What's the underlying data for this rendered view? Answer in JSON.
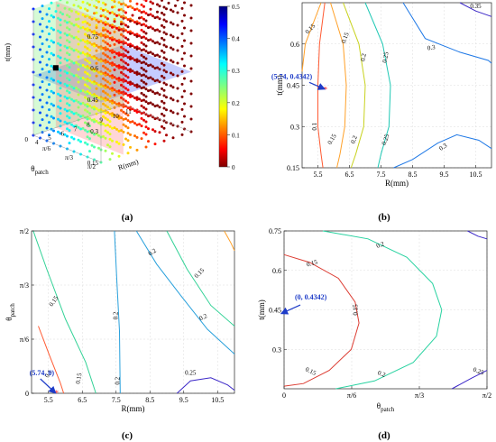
{
  "panel_labels": [
    "(a)",
    "(b)",
    "(c)",
    "(d)"
  ],
  "chart_data": [
    {
      "panel": "(a)",
      "type": "scatter",
      "subtype": "3d-voxel-scatter",
      "axes": {
        "t": {
          "label": "t(mm)",
          "ticks": [
            "0.15",
            "0.3",
            "0.45",
            "0.6",
            "0.75"
          ],
          "range": [
            0.15,
            0.75
          ]
        },
        "R": {
          "label": "R(mm)",
          "ticks": [
            "4",
            "5",
            "6",
            "7",
            "8",
            "9",
            "10",
            "11"
          ],
          "range": [
            4,
            11
          ]
        },
        "theta": {
          "label": "θ",
          "label_sub": "patch",
          "ticks": [
            "0",
            "π/6",
            "π/3",
            "π/2"
          ]
        }
      },
      "colorbar": {
        "ticks": [
          "0",
          "0.1",
          "0.2",
          "0.3",
          "0.4",
          "0.5"
        ],
        "range": [
          0,
          0.5
        ],
        "colormap": "jet"
      },
      "highlight_point": {
        "R": 5.74,
        "theta": 0,
        "t": 0.4342,
        "color": "#000000"
      },
      "slice_planes": [
        "t = 0.4342 (blue)",
        "θ = 0 (green)",
        "R = 5.74 (red)"
      ]
    },
    {
      "panel": "(b)",
      "type": "contour",
      "xlabel": "R(mm)",
      "ylabel": "t(mm)",
      "xticks": [
        "5.5",
        "6.5",
        "7.5",
        "8.5",
        "9.5",
        "10.5"
      ],
      "yticks": [
        "0.15",
        "0.3",
        "0.45",
        "0.6"
      ],
      "xlim": [
        5,
        11
      ],
      "ylim": [
        0.15,
        0.75
      ],
      "levels": [
        {
          "value": "0.1",
          "color": "#ff5a32"
        },
        {
          "value": "0.15",
          "color": "#ffa028"
        },
        {
          "value": "0.2",
          "color": "#c8d21e"
        },
        {
          "value": "0.25",
          "color": "#1ec8b4"
        },
        {
          "value": "0.3",
          "color": "#1e78e6"
        },
        {
          "value": "0.35",
          "color": "#3c28c8"
        }
      ],
      "contour_labels": [
        "0.1",
        "0.15",
        "0.15",
        "0.15",
        "0.2",
        "0.2",
        "0.25",
        "0.25",
        "0.3",
        "0.3",
        "0.35"
      ],
      "marker": {
        "x": 5.74,
        "y": 0.4342,
        "label": "(5.74, 0.4342)"
      }
    },
    {
      "panel": "(c)",
      "type": "contour",
      "xlabel": "R(mm)",
      "ylabel": "θ",
      "ylabel_sub": "patch",
      "xticks": [
        "5.5",
        "6.5",
        "7.5",
        "8.5",
        "9.5",
        "10.5"
      ],
      "yticks": [
        "0",
        "π/6",
        "π/3",
        "π/2"
      ],
      "xlim": [
        5,
        11
      ],
      "ylim": [
        0,
        1.5708
      ],
      "levels": [
        {
          "value": "0.1",
          "color": "#ff5a32"
        },
        {
          "value": "0.15",
          "color": "#32d296"
        },
        {
          "value": "0.2",
          "color": "#28a0dc"
        },
        {
          "value": "0.25",
          "color": "#3c28c8"
        }
      ],
      "contour_labels": [
        "0.1",
        "0.15",
        "0.15",
        "0.15",
        "0.2",
        "0.2",
        "0.2",
        "0.2",
        "0.25"
      ],
      "marker": {
        "x": 5.74,
        "y": 0,
        "label": "(5.74, 0)"
      }
    },
    {
      "panel": "(d)",
      "type": "contour",
      "xlabel": "θ",
      "xlabel_sub": "patch",
      "ylabel": "t(mm)",
      "xticks": [
        "0",
        "π/6",
        "π/3",
        "π/2"
      ],
      "yticks": [
        "0.3",
        "0.45",
        "0.6",
        "0.75"
      ],
      "xlim": [
        0,
        1.5708
      ],
      "ylim": [
        0.15,
        0.75
      ],
      "levels": [
        {
          "value": "0.15",
          "color": "#dc3c32"
        },
        {
          "value": "0.2",
          "color": "#28d2a0"
        },
        {
          "value": "0.25",
          "color": "#3c28c8"
        }
      ],
      "contour_labels": [
        "0.15",
        "0.15",
        "0.15",
        "0.2",
        "0.2",
        "0.25"
      ],
      "marker": {
        "x": 0,
        "y": 0.4342,
        "label": "(0, 0.4342)"
      }
    }
  ]
}
